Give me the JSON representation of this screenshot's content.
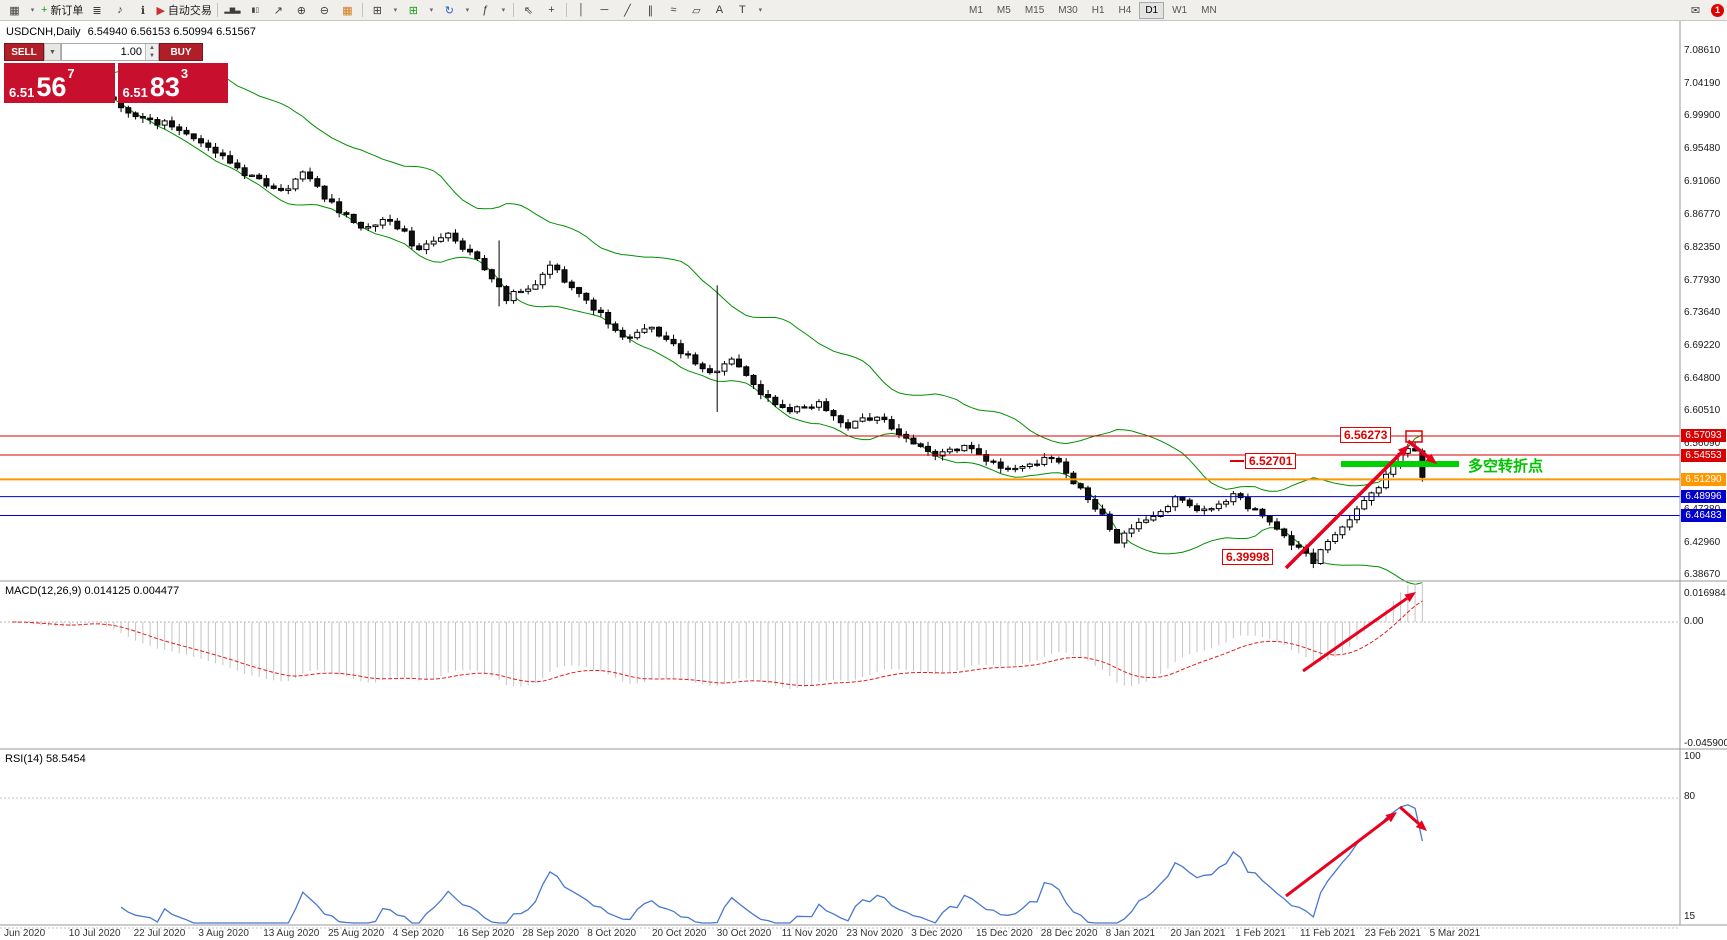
{
  "toolbar": {
    "items": [
      {
        "name": "chart-shift-icon",
        "glyph": "▦"
      },
      {
        "name": "charts-dropdown",
        "glyph": "▾",
        "small": true
      },
      {
        "name": "new-order-button",
        "glyph": "+",
        "glyph_color": "#18a018",
        "label": "新订单"
      },
      {
        "name": "depth-of-market-icon",
        "glyph": "≣"
      },
      {
        "name": "sounds-icon",
        "glyph": "♪"
      },
      {
        "name": "news-icon",
        "glyph": "ℹ"
      },
      {
        "name": "autotrading-button",
        "glyph": "▶",
        "glyph_color": "#c83232",
        "label": "自动交易"
      },
      {
        "sep": true
      },
      {
        "name": "bar-chart-type-button",
        "glyph": "▂▆▃"
      },
      {
        "name": "candle-chart-type-button",
        "glyph": "▮▯"
      },
      {
        "name": "line-chart-type-button",
        "glyph": "↗"
      },
      {
        "name": "zoom-in-button",
        "glyph": "⊕"
      },
      {
        "name": "zoom-out-button",
        "glyph": "⊖"
      },
      {
        "name": "market-watch-button",
        "glyph": "▦",
        "glyph_color": "#d07818"
      },
      {
        "sep": true
      },
      {
        "name": "tile-windows-button",
        "glyph": "⊞"
      },
      {
        "name": "tile-windows-dropdown",
        "glyph": "▾",
        "small": true
      },
      {
        "name": "new-chart-button",
        "glyph": "⊞",
        "glyph_color": "#18a018"
      },
      {
        "name": "new-chart-dropdown",
        "glyph": "▾",
        "small": true
      },
      {
        "name": "refresh-button",
        "glyph": "↻",
        "glyph_color": "#2060c0"
      },
      {
        "name": "refresh-dropdown",
        "glyph": "▾",
        "small": true
      },
      {
        "name": "indicators-button",
        "glyph": "ƒ"
      },
      {
        "name": "indicators-dropdown",
        "glyph": "▾",
        "small": true
      },
      {
        "sep": true
      },
      {
        "name": "cursor-button",
        "glyph": "⇖"
      },
      {
        "name": "crosshair-button",
        "glyph": "+"
      },
      {
        "sep": true
      },
      {
        "name": "vertical-line-tool",
        "glyph": "│"
      },
      {
        "name": "horizontal-line-tool",
        "glyph": "─"
      },
      {
        "name": "trendline-tool",
        "glyph": "╱"
      },
      {
        "name": "channel-tool",
        "glyph": "∥"
      },
      {
        "name": "fibonacci-tool",
        "glyph": "≈"
      },
      {
        "name": "shapes-tool",
        "glyph": "▱"
      },
      {
        "name": "text-tool",
        "glyph": "A"
      },
      {
        "name": "label-tool",
        "glyph": "T"
      },
      {
        "name": "objects-dropdown",
        "glyph": "▾",
        "small": true
      }
    ],
    "timeframes": [
      "M1",
      "M5",
      "M15",
      "M30",
      "H1",
      "H4",
      "D1",
      "W1",
      "MN"
    ],
    "active_timeframe": "D1",
    "badge_count": "1"
  },
  "quote_panel": {
    "sell_label": "SELL",
    "buy_label": "BUY",
    "lot_value": "1.00",
    "sell_price": {
      "big": "6.51",
      "pips": "56",
      "sup": "7"
    },
    "buy_price": {
      "big": "6.51",
      "pips": "83",
      "sup": "3"
    }
  },
  "chart": {
    "title": "USDCNH,Daily",
    "ohlc": "6.54940 6.56153 6.50994 6.51567",
    "price_axis_labels": [
      "7.08610",
      "7.04190",
      "6.99900",
      "6.95480",
      "6.91060",
      "6.86770",
      "6.82350",
      "6.77930",
      "6.73640",
      "6.69220",
      "6.64800",
      "6.60510",
      "6.56090",
      "6.51670",
      "6.47380",
      "6.42960",
      "6.38670"
    ],
    "levels": [
      {
        "price": 6.57093,
        "label": "6.57093",
        "color": "#d80000",
        "width": 1
      },
      {
        "price": 6.54553,
        "label": "6.54553",
        "color": "#d80000",
        "width": 1
      },
      {
        "price": 6.5129,
        "label": "6.51290",
        "color": "#ff9800",
        "width": 2
      },
      {
        "price": 6.48996,
        "label": "6.48996",
        "color": "#0000cd",
        "width": 1
      },
      {
        "price": 6.46483,
        "label": "6.46483",
        "color": "#0000cd",
        "width": 1
      }
    ],
    "annotations": {
      "high_label": "6.56273",
      "mid_label": "6.52701",
      "low_label": "6.39998",
      "turning_point": "多空转折点"
    },
    "date_labels": [
      "Jun 2020",
      "10 Jul 2020",
      "22 Jul 2020",
      "3 Aug 2020",
      "13 Aug 2020",
      "25 Aug 2020",
      "4 Sep 2020",
      "16 Sep 2020",
      "28 Sep 2020",
      "8 Oct 2020",
      "20 Oct 2020",
      "30 Oct 2020",
      "11 Nov 2020",
      "23 Nov 2020",
      "3 Dec 2020",
      "15 Dec 2020",
      "28 Dec 2020",
      "8 Jan 2021",
      "20 Jan 2021",
      "1 Feb 2021",
      "11 Feb 2021",
      "23 Feb 2021",
      "5 Mar 2021"
    ]
  },
  "macd": {
    "label": "MACD(12,26,9) 0.014125 0.004477",
    "axis": [
      "0.016984",
      "0.00",
      "-0.045900"
    ]
  },
  "rsi": {
    "label": "RSI(14) 58.5454",
    "axis": [
      "100",
      "80",
      "15"
    ]
  },
  "chart_data": {
    "type": "candlestick",
    "symbol": "USDCNH",
    "timeframe": "Daily",
    "candle_count": 195,
    "price_range": [
      6.3867,
      7.0861
    ],
    "anchors": [
      [
        0,
        7.048
      ],
      [
        6,
        7.035
      ],
      [
        10,
        7.052
      ],
      [
        16,
        6.998
      ],
      [
        22,
        6.985
      ],
      [
        28,
        6.952
      ],
      [
        33,
        6.915
      ],
      [
        37,
        6.895
      ],
      [
        40,
        6.925
      ],
      [
        44,
        6.88
      ],
      [
        48,
        6.845
      ],
      [
        52,
        6.862
      ],
      [
        56,
        6.818
      ],
      [
        60,
        6.842
      ],
      [
        64,
        6.805
      ],
      [
        66,
        6.782
      ],
      [
        68,
        6.756
      ],
      [
        71,
        6.766
      ],
      [
        74,
        6.798
      ],
      [
        77,
        6.772
      ],
      [
        80,
        6.742
      ],
      [
        84,
        6.7
      ],
      [
        88,
        6.716
      ],
      [
        92,
        6.683
      ],
      [
        96,
        6.655
      ],
      [
        99,
        6.673
      ],
      [
        103,
        6.625
      ],
      [
        107,
        6.603
      ],
      [
        111,
        6.616
      ],
      [
        115,
        6.585
      ],
      [
        119,
        6.6
      ],
      [
        123,
        6.568
      ],
      [
        127,
        6.547
      ],
      [
        131,
        6.558
      ],
      [
        135,
        6.532
      ],
      [
        139,
        6.527
      ],
      [
        143,
        6.543
      ],
      [
        147,
        6.5
      ],
      [
        150,
        6.462
      ],
      [
        152,
        6.432
      ],
      [
        156,
        6.458
      ],
      [
        160,
        6.488
      ],
      [
        164,
        6.47
      ],
      [
        168,
        6.492
      ],
      [
        172,
        6.463
      ],
      [
        176,
        6.425
      ],
      [
        179,
        6.404
      ],
      [
        182,
        6.44
      ],
      [
        185,
        6.475
      ],
      [
        188,
        6.505
      ],
      [
        191,
        6.548
      ],
      [
        193,
        6.553
      ],
      [
        194,
        6.516
      ]
    ],
    "fixed_closes": {
      "193": 6.551,
      "194": 6.5157
    },
    "spikes": [
      {
        "i": 67,
        "high": 6.832,
        "low": 6.744
      },
      {
        "i": 97,
        "high": 6.772,
        "low": 6.603
      },
      {
        "i": 179,
        "low": 6.39998
      },
      {
        "i": 193,
        "high": 6.56273
      }
    ],
    "indicators": {
      "bollinger_period": 20,
      "bollinger_dev": 2,
      "macd": [
        12,
        26,
        9
      ],
      "rsi_period": 14
    }
  }
}
